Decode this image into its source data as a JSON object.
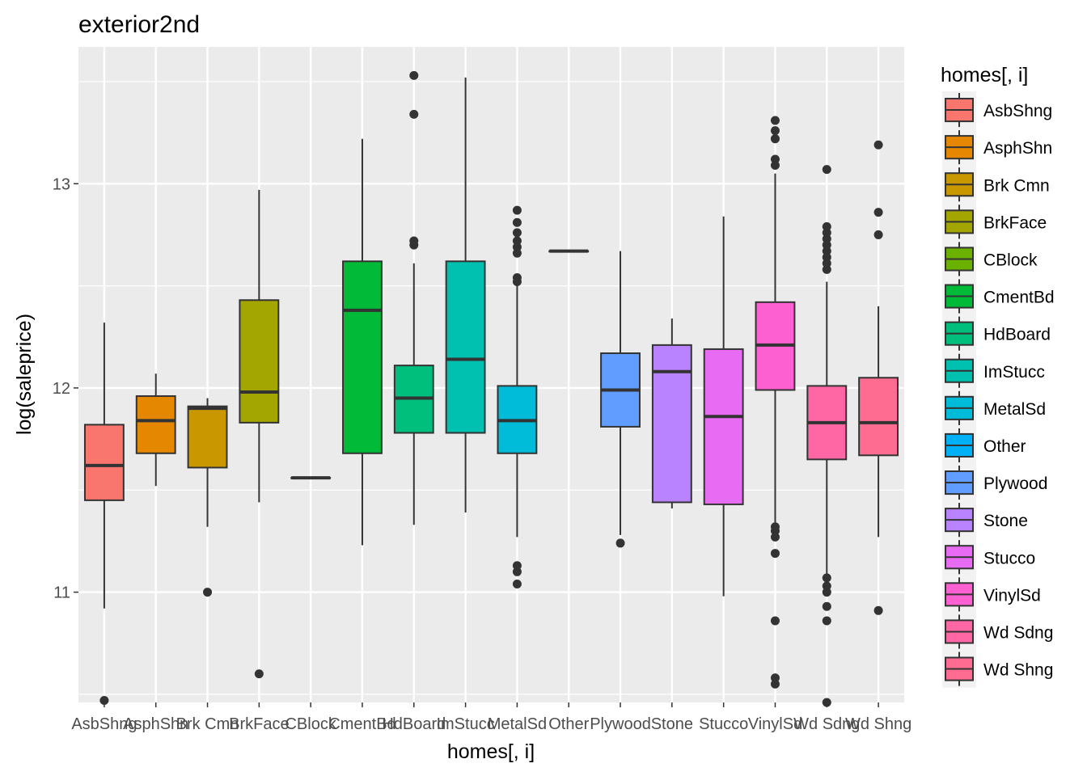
{
  "chart_data": {
    "type": "boxplot",
    "title": "exterior2nd",
    "xlabel": "homes[, i]",
    "ylabel": "log(saleprice)",
    "ylim": [
      10.46,
      13.67
    ],
    "yticks": [
      11,
      12,
      13
    ],
    "grid": true,
    "legend": {
      "title": "homes[, i]",
      "position": "right"
    },
    "categories": [
      "AsbShng",
      "AsphShn",
      "Brk Cmn",
      "BrkFace",
      "CBlock",
      "CmentBd",
      "HdBoard",
      "ImStucc",
      "MetalSd",
      "Other",
      "Plywood",
      "Stone",
      "Stucco",
      "VinylSd",
      "Wd Sdng",
      "Wd Shng"
    ],
    "colors": [
      "#F8766D",
      "#E58700",
      "#C99800",
      "#A3A500",
      "#6BB100",
      "#00BA38",
      "#00BF7D",
      "#00C0AF",
      "#00BCD8",
      "#00B0F6",
      "#619CFF",
      "#B983FF",
      "#E76BF3",
      "#FD61D1",
      "#FF67A4",
      "#FF6C91"
    ],
    "boxes": [
      {
        "min": 10.92,
        "q1": 11.45,
        "median": 11.62,
        "q3": 11.82,
        "max": 12.32,
        "outliers": [
          10.47
        ]
      },
      {
        "min": 11.52,
        "q1": 11.68,
        "median": 11.84,
        "q3": 11.96,
        "max": 12.07,
        "outliers": []
      },
      {
        "min": 11.32,
        "q1": 11.61,
        "median": 11.9,
        "q3": 11.91,
        "max": 11.95,
        "outliers": [
          11.0
        ]
      },
      {
        "min": 11.44,
        "q1": 11.83,
        "median": 11.98,
        "q3": 12.43,
        "max": 12.97,
        "outliers": [
          10.6
        ]
      },
      {
        "min": 11.56,
        "q1": 11.56,
        "median": 11.56,
        "q3": 11.56,
        "max": 11.56,
        "outliers": []
      },
      {
        "min": 11.23,
        "q1": 11.68,
        "median": 12.38,
        "q3": 12.62,
        "max": 13.22,
        "outliers": []
      },
      {
        "min": 11.33,
        "q1": 11.78,
        "median": 11.95,
        "q3": 12.11,
        "max": 12.61,
        "outliers": [
          12.7,
          12.72,
          13.34,
          13.53
        ]
      },
      {
        "min": 11.39,
        "q1": 11.78,
        "median": 12.14,
        "q3": 12.62,
        "max": 13.52,
        "outliers": []
      },
      {
        "min": 11.27,
        "q1": 11.68,
        "median": 11.84,
        "q3": 12.01,
        "max": 12.51,
        "outliers": [
          11.04,
          11.1,
          11.13,
          12.52,
          12.54,
          12.66,
          12.69,
          12.72,
          12.76,
          12.81,
          12.87
        ]
      },
      {
        "min": 12.67,
        "q1": 12.67,
        "median": 12.67,
        "q3": 12.67,
        "max": 12.67,
        "outliers": []
      },
      {
        "min": 11.28,
        "q1": 11.81,
        "median": 11.99,
        "q3": 12.17,
        "max": 12.67,
        "outliers": [
          11.24
        ]
      },
      {
        "min": 11.41,
        "q1": 11.44,
        "median": 12.08,
        "q3": 12.21,
        "max": 12.34,
        "outliers": []
      },
      {
        "min": 10.98,
        "q1": 11.43,
        "median": 11.86,
        "q3": 12.19,
        "max": 12.84,
        "outliers": []
      },
      {
        "min": 11.34,
        "q1": 11.99,
        "median": 12.21,
        "q3": 12.42,
        "max": 13.05,
        "outliers": [
          10.55,
          10.58,
          10.86,
          11.19,
          11.27,
          11.3,
          11.32,
          13.09,
          13.12,
          13.22,
          13.26,
          13.31
        ]
      },
      {
        "min": 11.09,
        "q1": 11.65,
        "median": 11.83,
        "q3": 12.01,
        "max": 12.52,
        "outliers": [
          10.46,
          10.86,
          10.93,
          11.0,
          11.03,
          11.07,
          12.58,
          12.61,
          12.64,
          12.67,
          12.7,
          12.73,
          12.76,
          12.79,
          13.07
        ]
      },
      {
        "min": 11.27,
        "q1": 11.67,
        "median": 11.83,
        "q3": 12.05,
        "max": 12.4,
        "outliers": [
          10.91,
          12.75,
          12.86,
          13.19
        ]
      }
    ]
  }
}
